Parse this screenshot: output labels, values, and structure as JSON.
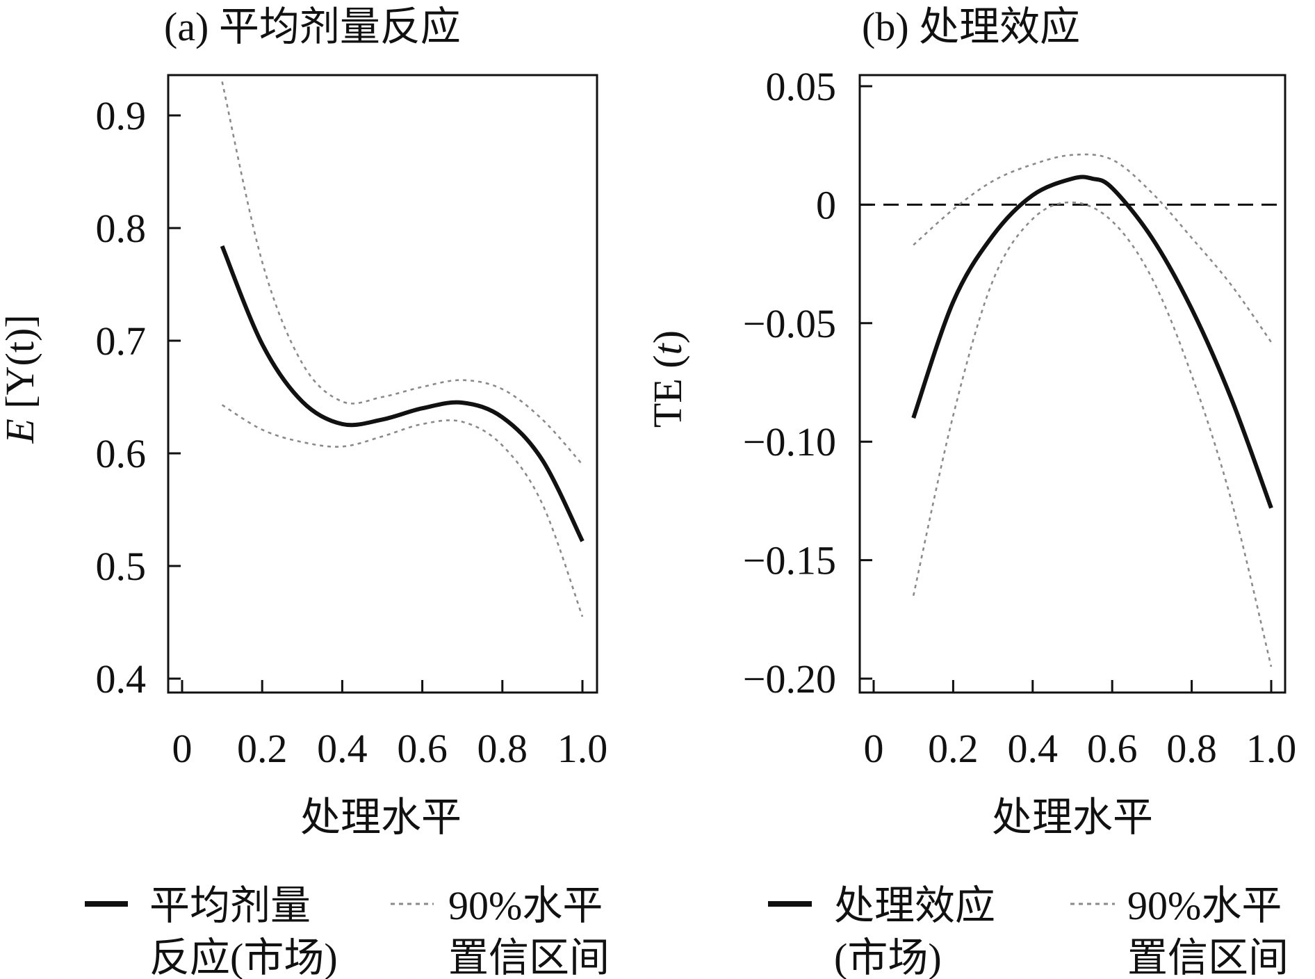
{
  "chart_data": [
    {
      "type": "line",
      "title": "(a) 平均剂量反应",
      "xlabel": "处理水平",
      "ylabel_italic": "E",
      "ylabel_rest": " [Y(t)]",
      "xlim": [
        0,
        1.0
      ],
      "ylim": [
        0.4,
        0.93
      ],
      "xticks": [
        0,
        0.2,
        0.4,
        0.6,
        0.8,
        1.0
      ],
      "xtick_labels": [
        "0",
        "0.2",
        "0.4",
        "0.6",
        "0.8",
        "1.0"
      ],
      "yticks": [
        0.4,
        0.5,
        0.6,
        0.7,
        0.8,
        0.9
      ],
      "ytick_labels": [
        "0.4",
        "0.5",
        "0.6",
        "0.7",
        "0.8",
        "0.9"
      ],
      "grid": false,
      "legend_position": "bottom",
      "series": [
        {
          "name": "平均剂量反应(市场)",
          "style": "solid",
          "color": "#111111",
          "x": [
            0.1,
            0.2,
            0.3,
            0.4,
            0.5,
            0.6,
            0.7,
            0.8,
            0.9,
            1.0
          ],
          "y": [
            0.784,
            0.697,
            0.646,
            0.626,
            0.63,
            0.64,
            0.645,
            0.632,
            0.594,
            0.522
          ]
        },
        {
          "name": "90%水平置信区间",
          "style": "dotted",
          "color": "#8a8a8a",
          "x": [
            0.1,
            0.2,
            0.3,
            0.4,
            0.5,
            0.6,
            0.7,
            0.8,
            0.9,
            1.0
          ],
          "y": [
            0.93,
            0.77,
            0.68,
            0.646,
            0.65,
            0.659,
            0.665,
            0.657,
            0.63,
            0.59
          ]
        },
        {
          "name": "",
          "style": "dotted",
          "color": "#8a8a8a",
          "x": [
            0.1,
            0.2,
            0.3,
            0.4,
            0.5,
            0.6,
            0.7,
            0.8,
            0.9,
            1.0
          ],
          "y": [
            0.643,
            0.621,
            0.61,
            0.606,
            0.615,
            0.626,
            0.628,
            0.607,
            0.555,
            0.455
          ]
        }
      ]
    },
    {
      "type": "line",
      "title": "(b) 处理效应",
      "xlabel": "处理水平",
      "ylabel_plain": "TE (",
      "ylabel_italic": "t",
      "ylabel_close": ")",
      "xlim": [
        0,
        1.0
      ],
      "ylim": [
        -0.205,
        0.055
      ],
      "xticks": [
        0,
        0.2,
        0.4,
        0.6,
        0.8,
        1.0
      ],
      "xtick_labels": [
        "0",
        "0.2",
        "0.4",
        "0.6",
        "0.8",
        "1.0"
      ],
      "yticks": [
        -0.2,
        -0.15,
        -0.1,
        -0.05,
        0,
        0.05
      ],
      "ytick_labels": [
        "−0.20",
        "−0.15",
        "−0.10",
        "−0.05",
        "0",
        "0.05"
      ],
      "reference_line_y": 0,
      "grid": false,
      "legend_position": "bottom",
      "series": [
        {
          "name": "处理效应(市场)",
          "style": "solid",
          "color": "#111111",
          "x": [
            0.1,
            0.2,
            0.3,
            0.4,
            0.5,
            0.55,
            0.6,
            0.7,
            0.8,
            0.9,
            1.0
          ],
          "y": [
            -0.09,
            -0.041,
            -0.013,
            0.004,
            0.011,
            0.011,
            0.007,
            -0.014,
            -0.044,
            -0.082,
            -0.128
          ]
        },
        {
          "name": "90%水平置信区间",
          "style": "dotted",
          "color": "#8a8a8a",
          "x": [
            0.1,
            0.2,
            0.3,
            0.4,
            0.5,
            0.6,
            0.7,
            0.8,
            0.9,
            1.0
          ],
          "y": [
            -0.017,
            -0.002,
            0.01,
            0.017,
            0.021,
            0.019,
            0.005,
            -0.014,
            -0.034,
            -0.058
          ]
        },
        {
          "name": "",
          "style": "dotted",
          "color": "#8a8a8a",
          "x": [
            0.1,
            0.2,
            0.3,
            0.4,
            0.5,
            0.6,
            0.7,
            0.8,
            0.9,
            1.0
          ],
          "y": [
            -0.165,
            -0.089,
            -0.032,
            -0.006,
            0.001,
            -0.007,
            -0.031,
            -0.072,
            -0.125,
            -0.195
          ]
        }
      ]
    }
  ],
  "legend": {
    "a_solid_line1": "平均剂量",
    "a_solid_line2": "反应(市场)",
    "a_dotted_line1": "90%水平",
    "a_dotted_line2": "置信区间",
    "b_solid_line1": "处理效应",
    "b_solid_line2": "(市场)",
    "b_dotted_line1": "90%水平",
    "b_dotted_line2": "置信区间"
  }
}
